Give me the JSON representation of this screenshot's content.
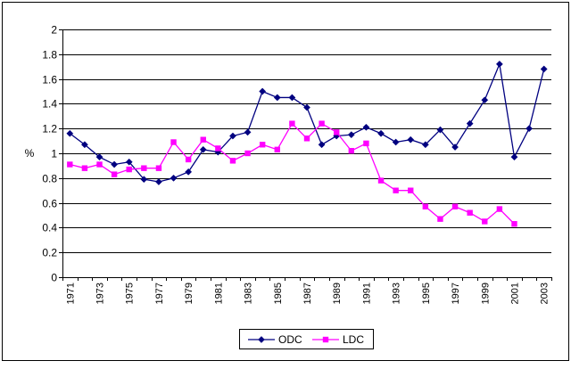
{
  "chart_data": {
    "type": "line",
    "ylabel": "%",
    "ylim": [
      0,
      2
    ],
    "y_ticks": [
      "0",
      "0.2",
      "0.4",
      "0.6",
      "0.8",
      "1",
      "1.2",
      "1.4",
      "1.6",
      "1.8",
      "2"
    ],
    "x": [
      1971,
      1972,
      1973,
      1974,
      1975,
      1976,
      1977,
      1978,
      1979,
      1980,
      1981,
      1982,
      1983,
      1984,
      1985,
      1986,
      1987,
      1988,
      1989,
      1990,
      1991,
      1992,
      1993,
      1994,
      1995,
      1996,
      1997,
      1998,
      1999,
      2000,
      2001,
      2002,
      2003
    ],
    "x_tick_labels": [
      "1971",
      "1973",
      "1975",
      "1977",
      "1979",
      "1981",
      "1983",
      "1985",
      "1987",
      "1989",
      "1991",
      "1993",
      "1995",
      "1997",
      "1999",
      "2001",
      "2003"
    ],
    "grid": "horizontal",
    "legend_position": "bottom",
    "series": [
      {
        "name": "ODC",
        "color": "#000080",
        "marker": "diamond",
        "values": [
          1.16,
          1.07,
          0.97,
          0.91,
          0.93,
          0.79,
          0.77,
          0.8,
          0.85,
          1.03,
          1.01,
          1.14,
          1.17,
          1.5,
          1.45,
          1.45,
          1.37,
          1.07,
          1.14,
          1.15,
          1.21,
          1.16,
          1.09,
          1.11,
          1.07,
          1.19,
          1.05,
          1.24,
          1.43,
          1.72,
          0.97,
          1.2,
          1.68
        ]
      },
      {
        "name": "LDC",
        "color": "#ff00ff",
        "marker": "square",
        "values": [
          0.91,
          0.88,
          0.91,
          0.83,
          0.87,
          0.88,
          0.88,
          1.09,
          0.95,
          1.11,
          1.04,
          0.94,
          1.0,
          1.07,
          1.03,
          1.24,
          1.12,
          1.24,
          1.17,
          1.02,
          1.08,
          0.78,
          0.7,
          0.7,
          0.57,
          0.47,
          0.57,
          0.52,
          0.45,
          0.55,
          0.43,
          null,
          null
        ]
      }
    ]
  }
}
